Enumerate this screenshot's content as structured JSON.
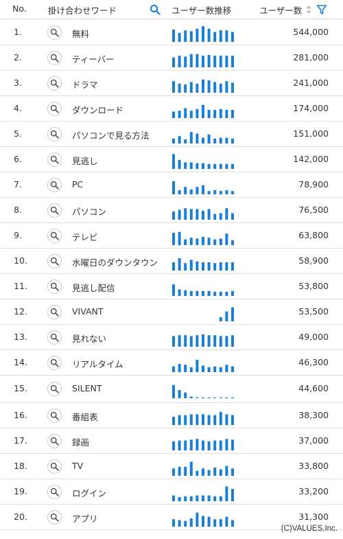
{
  "header": {
    "no_label": "No.",
    "keyword_label": "掛け合わせワード",
    "trend_label": "ユーザー数推移",
    "users_label": "ユーザー数"
  },
  "colors": {
    "bar": "#1a7fd4",
    "icon_blue": "#1a7fd4"
  },
  "rows": [
    {
      "rank": "1.",
      "keyword": "無料",
      "users": "544,000",
      "trend": [
        0.75,
        0.55,
        0.7,
        0.65,
        0.8,
        0.95,
        0.8,
        0.6,
        0.7,
        0.7,
        0.6
      ]
    },
    {
      "rank": "2.",
      "keyword": "ティーバー",
      "users": "281,000",
      "trend": [
        0.6,
        0.7,
        0.65,
        0.8,
        0.8,
        0.7,
        0.75,
        0.7,
        0.7,
        0.7,
        0.7
      ]
    },
    {
      "rank": "3.",
      "keyword": "ドラマ",
      "users": "241,000",
      "trend": [
        0.7,
        0.55,
        0.5,
        0.65,
        0.55,
        0.8,
        0.75,
        0.65,
        0.55,
        0.7,
        0.6
      ]
    },
    {
      "rank": "4.",
      "keyword": "ダウンロード",
      "users": "174,000",
      "trend": [
        0.4,
        0.45,
        0.6,
        0.45,
        0.55,
        0.8,
        0.5,
        0.5,
        0.55,
        0.5,
        0.5
      ]
    },
    {
      "rank": "5.",
      "keyword": "パソコンで見る方法",
      "users": "151,000",
      "trend": [
        0.3,
        0.45,
        0.25,
        0.7,
        0.6,
        0.35,
        0.55,
        0.3,
        0.35,
        0.35,
        0.3
      ]
    },
    {
      "rank": "6.",
      "keyword": "見逃し",
      "users": "142,000",
      "trend": [
        0.9,
        0.55,
        0.4,
        0.4,
        0.35,
        0.35,
        0.3,
        0.3,
        0.3,
        0.3,
        0.3
      ]
    },
    {
      "rank": "7.",
      "keyword": "PC",
      "users": "78,900",
      "trend": [
        0.8,
        0.25,
        0.45,
        0.3,
        0.45,
        0.55,
        0.2,
        0.25,
        0.2,
        0.25,
        0.2
      ]
    },
    {
      "rank": "8.",
      "keyword": "パソコン",
      "users": "76,500",
      "trend": [
        0.5,
        0.6,
        0.7,
        0.65,
        0.65,
        0.55,
        0.65,
        0.35,
        0.4,
        0.7,
        0.4
      ]
    },
    {
      "rank": "9.",
      "keyword": "テレビ",
      "users": "63,800",
      "trend": [
        0.75,
        0.8,
        0.35,
        0.45,
        0.4,
        0.5,
        0.45,
        0.35,
        0.4,
        0.7,
        0.3
      ]
    },
    {
      "rank": "10.",
      "keyword": "水曜日のダウンタウン",
      "users": "58,900",
      "trend": [
        0.5,
        0.75,
        0.45,
        0.65,
        0.55,
        0.5,
        0.5,
        0.45,
        0.5,
        0.5,
        0.5
      ]
    },
    {
      "rank": "11.",
      "keyword": "見逃し配信",
      "users": "53,800",
      "trend": [
        0.7,
        0.4,
        0.35,
        0.3,
        0.3,
        0.3,
        0.3,
        0.25,
        0.25,
        0.25,
        0.3
      ]
    },
    {
      "rank": "12.",
      "keyword": "VIVANT",
      "users": "53,500",
      "trend": [
        0,
        0,
        0,
        0,
        0,
        0,
        0,
        0,
        0.25,
        0.6,
        0.85
      ]
    },
    {
      "rank": "13.",
      "keyword": "見れない",
      "users": "49,000",
      "trend": [
        0.65,
        0.7,
        0.7,
        0.65,
        0.7,
        0.75,
        0.7,
        0.7,
        0.65,
        0.65,
        0.7
      ]
    },
    {
      "rank": "14.",
      "keyword": "リアルタイム",
      "users": "46,300",
      "trend": [
        0.35,
        0.5,
        0.45,
        0.3,
        0.75,
        0.4,
        0.3,
        0.35,
        0.3,
        0.45,
        0.35
      ]
    },
    {
      "rank": "15.",
      "keyword": "SILENT",
      "users": "44,600",
      "trend": [
        0.8,
        0.5,
        0.35,
        0.1,
        0.05,
        0.05,
        0.05,
        0.05,
        0.05,
        0.05,
        0.05
      ]
    },
    {
      "rank": "16.",
      "keyword": "番組表",
      "users": "38,300",
      "trend": [
        0.5,
        0.6,
        0.6,
        0.65,
        0.65,
        0.65,
        0.6,
        0.6,
        0.8,
        0.65,
        0.6
      ]
    },
    {
      "rank": "17.",
      "keyword": "録画",
      "users": "37,000",
      "trend": [
        0.55,
        0.6,
        0.6,
        0.65,
        0.7,
        0.6,
        0.55,
        0.6,
        0.6,
        0.7,
        0.65
      ]
    },
    {
      "rank": "18.",
      "keyword": "TV",
      "users": "33,800",
      "trend": [
        0.45,
        0.55,
        0.55,
        0.85,
        0.3,
        0.45,
        0.35,
        0.5,
        0.4,
        0.6,
        0.45
      ]
    },
    {
      "rank": "19.",
      "keyword": "ログイン",
      "users": "33,200",
      "trend": [
        0.35,
        0.25,
        0.3,
        0.3,
        0.35,
        0.35,
        0.35,
        0.3,
        0.3,
        0.9,
        0.75
      ]
    },
    {
      "rank": "20.",
      "keyword": "アプリ",
      "users": "31,300",
      "trend": [
        0.45,
        0.4,
        0.35,
        0.5,
        0.85,
        0.65,
        0.6,
        0.45,
        0.45,
        0.6,
        0.4
      ]
    }
  ],
  "footer": {
    "copyright": "(C)VALUES,Inc."
  }
}
